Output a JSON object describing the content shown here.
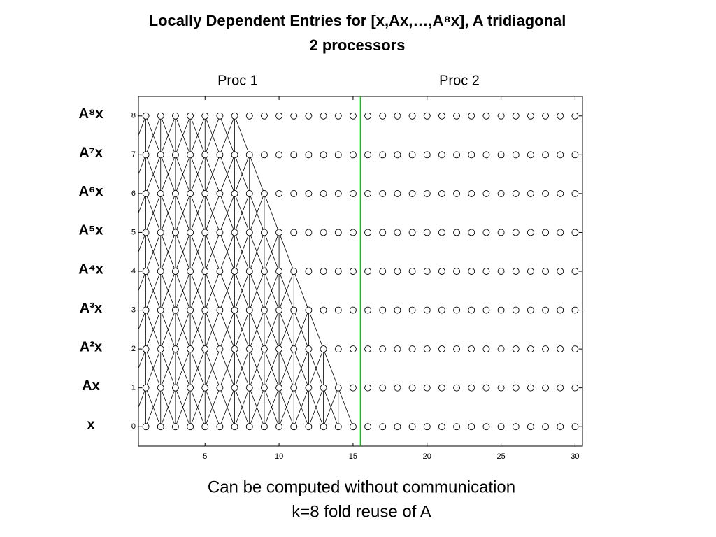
{
  "chart_data": {
    "type": "dependency-grid",
    "title": "Locally Dependent Entries for [x,Ax,…,A⁸x], A tridiagonal",
    "subtitle": "2 processors",
    "processor_labels": [
      "Proc 1",
      "Proc 2"
    ],
    "processor_boundary": 15.5,
    "boundary_color": "#00cc00",
    "x": [
      1,
      2,
      3,
      4,
      5,
      6,
      7,
      8,
      9,
      10,
      11,
      12,
      13,
      14,
      15,
      16,
      17,
      18,
      19,
      20,
      21,
      22,
      23,
      24,
      25,
      26,
      27,
      28,
      29,
      30
    ],
    "rows": [
      {
        "label": "x",
        "level": 0
      },
      {
        "label": "Ax",
        "level": 1
      },
      {
        "label": "A²x",
        "level": 2
      },
      {
        "label": "A³x",
        "level": 3
      },
      {
        "label": "A⁴x",
        "level": 4
      },
      {
        "label": "A⁵x",
        "level": 5
      },
      {
        "label": "A⁶x",
        "level": 6
      },
      {
        "label": "A⁷x",
        "level": 7
      },
      {
        "label": "A⁸x",
        "level": 8
      }
    ],
    "dependent_last": [
      15,
      14,
      13,
      12,
      11,
      10,
      9,
      8,
      7
    ],
    "xlim": [
      0.5,
      30.5
    ],
    "xticks": [
      5,
      10,
      15,
      20,
      25,
      30
    ],
    "ylim": [
      -0.5,
      8.5
    ],
    "yticks": [
      0,
      1,
      2,
      3,
      4,
      5,
      6,
      7,
      8
    ],
    "notes": [
      "Can be computed without communication",
      "k=8 fold reuse of A"
    ]
  }
}
